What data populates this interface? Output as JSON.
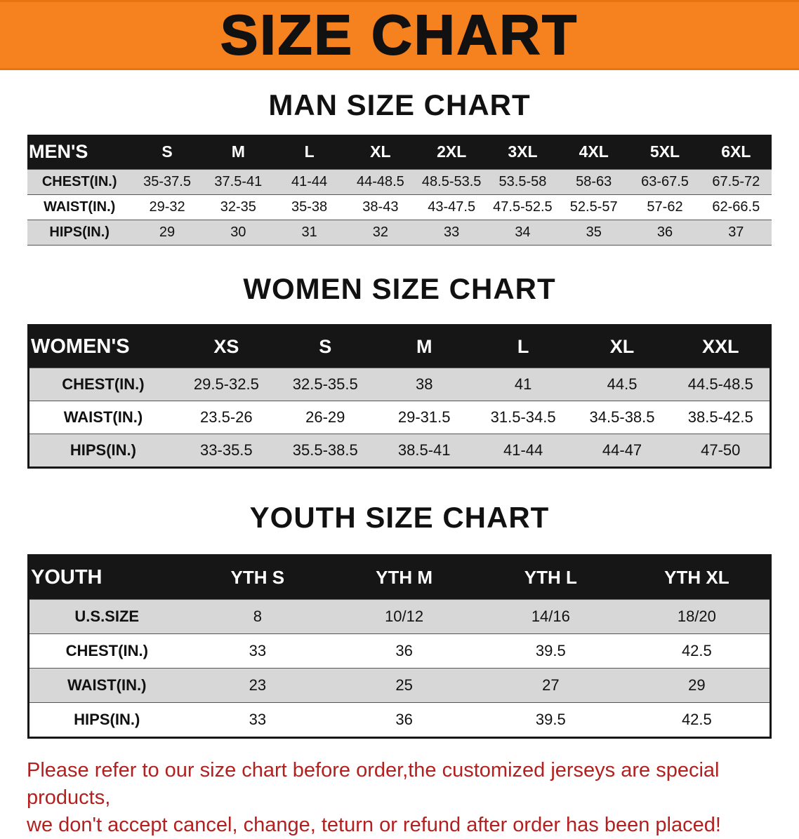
{
  "banner": {
    "title": "SIZE CHART"
  },
  "colors": {
    "banner_bg": "#f6821f",
    "table_header_bg": "#161616",
    "table_header_text": "#ffffff",
    "row_alt_bg": "#d7d7d7",
    "disclaimer_text": "#b2201f"
  },
  "sections": [
    {
      "id": "men",
      "heading": "MAN SIZE CHART",
      "table": {
        "header": [
          "MEN'S",
          "S",
          "M",
          "L",
          "XL",
          "2XL",
          "3XL",
          "4XL",
          "5XL",
          "6XL"
        ],
        "rows": [
          [
            "CHEST(IN.)",
            "35-37.5",
            "37.5-41",
            "41-44",
            "44-48.5",
            "48.5-53.5",
            "53.5-58",
            "58-63",
            "63-67.5",
            "67.5-72"
          ],
          [
            "WAIST(IN.)",
            "29-32",
            "32-35",
            "35-38",
            "38-43",
            "43-47.5",
            "47.5-52.5",
            "52.5-57",
            "57-62",
            "62-66.5"
          ],
          [
            "HIPS(IN.)",
            "29",
            "30",
            "31",
            "32",
            "33",
            "34",
            "35",
            "36",
            "37"
          ]
        ]
      }
    },
    {
      "id": "women",
      "heading": "WOMEN SIZE CHART",
      "table": {
        "header": [
          "WOMEN'S",
          "XS",
          "S",
          "M",
          "L",
          "XL",
          "XXL"
        ],
        "rows": [
          [
            "CHEST(IN.)",
            "29.5-32.5",
            "32.5-35.5",
            "38",
            "41",
            "44.5",
            "44.5-48.5"
          ],
          [
            "WAIST(IN.)",
            "23.5-26",
            "26-29",
            "29-31.5",
            "31.5-34.5",
            "34.5-38.5",
            "38.5-42.5"
          ],
          [
            "HIPS(IN.)",
            "33-35.5",
            "35.5-38.5",
            "38.5-41",
            "41-44",
            "44-47",
            "47-50"
          ]
        ]
      }
    },
    {
      "id": "youth",
      "heading": "YOUTH SIZE CHART",
      "table": {
        "header": [
          "YOUTH",
          "YTH S",
          "YTH M",
          "YTH L",
          "YTH XL"
        ],
        "rows": [
          [
            "U.S.SIZE",
            "8",
            "10/12",
            "14/16",
            "18/20"
          ],
          [
            "CHEST(IN.)",
            "33",
            "36",
            "39.5",
            "42.5"
          ],
          [
            "WAIST(IN.)",
            "23",
            "25",
            "27",
            "29"
          ],
          [
            "HIPS(IN.)",
            "33",
            "36",
            "39.5",
            "42.5"
          ]
        ]
      }
    }
  ],
  "disclaimer": {
    "lines": [
      "Please refer to our size chart before order,the customized jerseys are special products,",
      "we don't accept cancel, change, teturn or refund after order has been placed!"
    ]
  }
}
